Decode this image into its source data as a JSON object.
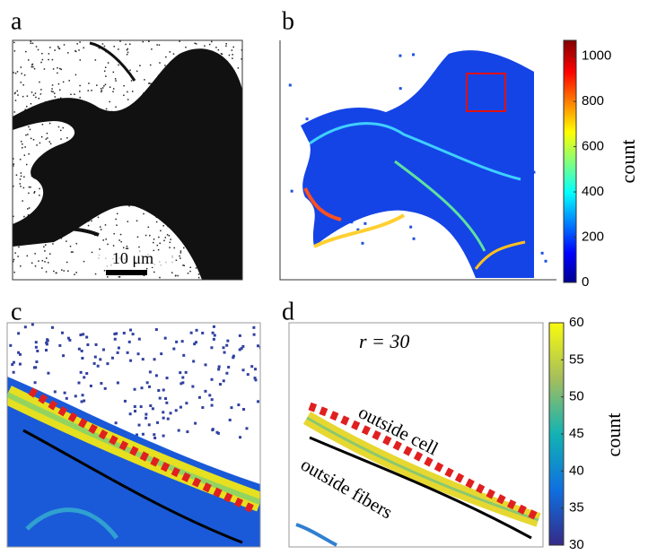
{
  "panels": [
    {
      "label": "a",
      "scale_bar": "10 μm"
    },
    {
      "label": "b",
      "colorbar": {
        "title": "count",
        "lim": [
          0,
          1070
        ],
        "ticks": [
          0,
          200,
          400,
          600,
          800,
          1000
        ]
      }
    },
    {
      "label": "c"
    },
    {
      "label": "d",
      "annotation": "r = 30",
      "curve_labels": [
        "outside cell",
        "outside fibers"
      ],
      "colorbar": {
        "title": "count",
        "lim": [
          30,
          60
        ],
        "ticks": [
          30,
          35,
          40,
          45,
          50,
          55,
          60
        ]
      }
    }
  ]
}
